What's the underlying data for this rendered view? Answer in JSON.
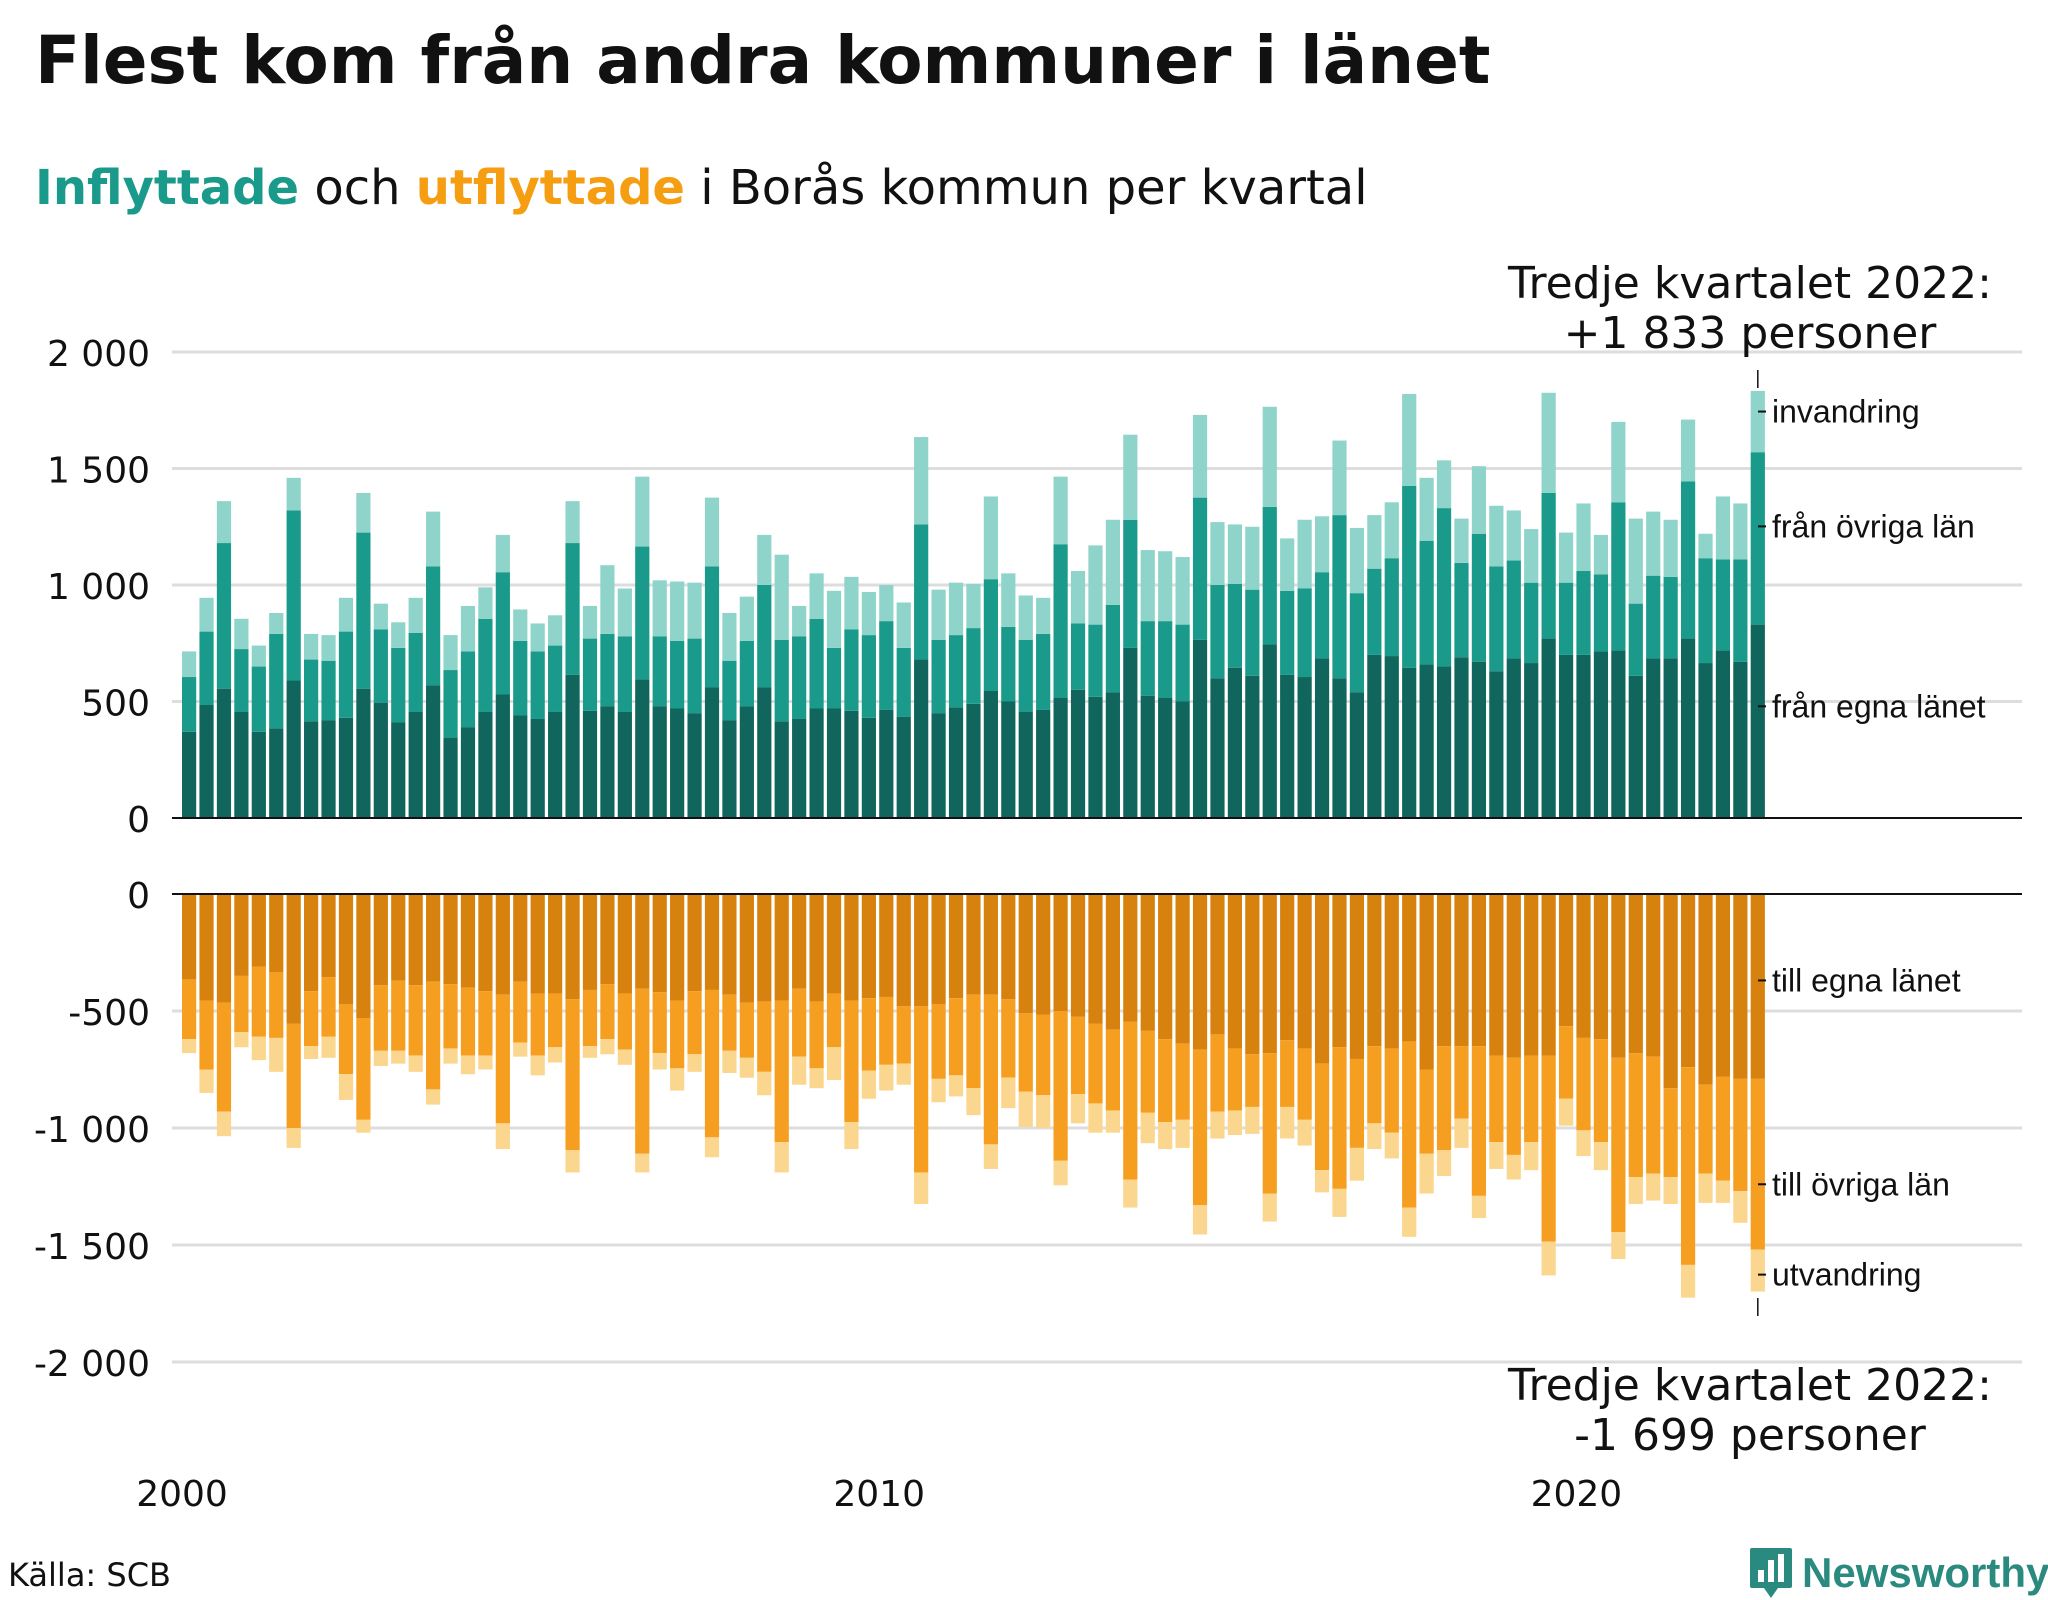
{
  "title": "Flest kom från andra kommuner i länet",
  "subtitle": {
    "in_word": "Inflyttade",
    "mid": " och ",
    "out_word": "utflyttade",
    "rest": " i Borås kommun per kvartal"
  },
  "colors": {
    "in_own": "#10665d",
    "in_other": "#1a9a8a",
    "in_immigration": "#8fd4ca",
    "out_own": "#d7820f",
    "out_other": "#f59e1f",
    "out_emigration": "#fbd68e",
    "title_in": "#1a9a8a",
    "title_out": "#f59e12",
    "brand": "#2a8a80"
  },
  "annotations": {
    "top_line1": "Tredje kvartalet 2022:",
    "top_line2": "+1 833 personer",
    "bottom_line1": "Tredje kvartalet 2022:",
    "bottom_line2": "-1 699 personer"
  },
  "source": "Källa: SCB",
  "brand": {
    "name": "Newsworthy",
    "icon": "bar-chart-icon"
  },
  "chart_data": {
    "type": "bar",
    "x_start": "2000 Q1",
    "x_ticks": [
      "2000",
      "2010",
      "2020"
    ],
    "categories": [
      "2000 Q1",
      "2000 Q2",
      "2000 Q3",
      "2000 Q4",
      "2001 Q1",
      "2001 Q2",
      "2001 Q3",
      "2001 Q4",
      "2002 Q1",
      "2002 Q2",
      "2002 Q3",
      "2002 Q4",
      "2003 Q1",
      "2003 Q2",
      "2003 Q3",
      "2003 Q4",
      "2004 Q1",
      "2004 Q2",
      "2004 Q3",
      "2004 Q4",
      "2005 Q1",
      "2005 Q2",
      "2005 Q3",
      "2005 Q4",
      "2006 Q1",
      "2006 Q2",
      "2006 Q3",
      "2006 Q4",
      "2007 Q1",
      "2007 Q2",
      "2007 Q3",
      "2007 Q4",
      "2008 Q1",
      "2008 Q2",
      "2008 Q3",
      "2008 Q4",
      "2009 Q1",
      "2009 Q2",
      "2009 Q3",
      "2009 Q4",
      "2010 Q1",
      "2010 Q2",
      "2010 Q3",
      "2010 Q4",
      "2011 Q1",
      "2011 Q2",
      "2011 Q3",
      "2011 Q4",
      "2012 Q1",
      "2012 Q2",
      "2012 Q3",
      "2012 Q4",
      "2013 Q1",
      "2013 Q2",
      "2013 Q3",
      "2013 Q4",
      "2014 Q1",
      "2014 Q2",
      "2014 Q3",
      "2014 Q4",
      "2015 Q1",
      "2015 Q2",
      "2015 Q3",
      "2015 Q4",
      "2016 Q1",
      "2016 Q2",
      "2016 Q3",
      "2016 Q4",
      "2017 Q1",
      "2017 Q2",
      "2017 Q3",
      "2017 Q4",
      "2018 Q1",
      "2018 Q2",
      "2018 Q3",
      "2018 Q4",
      "2019 Q1",
      "2019 Q2",
      "2019 Q3",
      "2019 Q4",
      "2020 Q1",
      "2020 Q2",
      "2020 Q3",
      "2020 Q4",
      "2021 Q1",
      "2021 Q2",
      "2021 Q3",
      "2021 Q4",
      "2022 Q1",
      "2022 Q2",
      "2022 Q3"
    ],
    "panels": [
      {
        "name": "inflyttade",
        "ylim": [
          0,
          2000
        ],
        "y_ticks": [
          0,
          500,
          1000,
          1500,
          2000
        ],
        "y_tick_labels": [
          "0",
          "500",
          "1 000",
          "1 500",
          "2 000"
        ],
        "series": [
          {
            "name": "från egna länet",
            "values": [
              370,
              485,
              555,
              455,
              370,
              385,
              590,
              415,
              420,
              430,
              555,
              495,
              410,
              455,
              570,
              345,
              390,
              455,
              530,
              440,
              425,
              455,
              615,
              460,
              480,
              455,
              595,
              480,
              470,
              450,
              560,
              420,
              480,
              560,
              415,
              425,
              470,
              470,
              460,
              430,
              465,
              435,
              680,
              450,
              475,
              490,
              545,
              500,
              455,
              465,
              515,
              550,
              520,
              540,
              730,
              525,
              515,
              500,
              765,
              600,
              645,
              610,
              745,
              615,
              605,
              685,
              600,
              540,
              700,
              695,
              645,
              660,
              650,
              690,
              670,
              630,
              685,
              665,
              770,
              700,
              700,
              715,
              720,
              610,
              685,
              685,
              770,
              665,
              720,
              670,
              830
            ]
          },
          {
            "name": "från övriga län",
            "values": [
              235,
              315,
              625,
              270,
              280,
              405,
              730,
              265,
              255,
              370,
              670,
              315,
              320,
              340,
              510,
              290,
              325,
              400,
              525,
              320,
              290,
              285,
              565,
              310,
              310,
              325,
              570,
              300,
              290,
              320,
              520,
              255,
              280,
              440,
              350,
              355,
              385,
              260,
              350,
              355,
              380,
              295,
              580,
              315,
              310,
              325,
              480,
              320,
              310,
              325,
              660,
              285,
              310,
              375,
              550,
              320,
              330,
              330,
              610,
              400,
              360,
              370,
              590,
              360,
              380,
              370,
              700,
              425,
              370,
              420,
              780,
              530,
              680,
              405,
              550,
              450,
              420,
              345,
              625,
              310,
              360,
              330,
              635,
              310,
              355,
              350,
              675,
              450,
              390,
              440,
              740
            ]
          },
          {
            "name": "invandring",
            "values": [
              110,
              145,
              180,
              130,
              90,
              90,
              140,
              110,
              110,
              145,
              170,
              110,
              110,
              150,
              235,
              150,
              195,
              135,
              160,
              135,
              120,
              130,
              180,
              140,
              295,
              205,
              300,
              240,
              255,
              240,
              295,
              205,
              190,
              215,
              365,
              130,
              195,
              245,
              225,
              185,
              155,
              195,
              375,
              215,
              225,
              190,
              355,
              230,
              190,
              155,
              290,
              225,
              340,
              365,
              365,
              305,
              300,
              290,
              355,
              270,
              255,
              270,
              430,
              225,
              295,
              240,
              320,
              280,
              230,
              240,
              395,
              270,
              205,
              190,
              290,
              260,
              215,
              230,
              430,
              215,
              290,
              170,
              345,
              365,
              275,
              245,
              265,
              105,
              270,
              240,
              263
            ]
          }
        ]
      },
      {
        "name": "utflyttade",
        "ylim": [
          -2000,
          0
        ],
        "y_ticks": [
          0,
          -500,
          -1000,
          -1500,
          -2000
        ],
        "y_tick_labels": [
          "0",
          "-500",
          "-1 000",
          "-1 500",
          "-2 000"
        ],
        "series": [
          {
            "name": "till egna länet",
            "values": [
              -365,
              -455,
              -465,
              -350,
              -310,
              -335,
              -555,
              -415,
              -355,
              -470,
              -530,
              -390,
              -370,
              -390,
              -375,
              -385,
              -400,
              -415,
              -430,
              -375,
              -425,
              -425,
              -450,
              -410,
              -385,
              -425,
              -405,
              -420,
              -455,
              -415,
              -410,
              -430,
              -465,
              -460,
              -455,
              -405,
              -460,
              -425,
              -455,
              -445,
              -440,
              -480,
              -480,
              -470,
              -445,
              -430,
              -430,
              -450,
              -510,
              -515,
              -500,
              -525,
              -555,
              -580,
              -545,
              -585,
              -620,
              -640,
              -665,
              -600,
              -660,
              -685,
              -680,
              -625,
              -660,
              -725,
              -655,
              -705,
              -650,
              -660,
              -630,
              -750,
              -650,
              -650,
              -650,
              -690,
              -700,
              -690,
              -690,
              -565,
              -615,
              -620,
              -700,
              -680,
              -695,
              -830,
              -740,
              -815,
              -780,
              -790,
              -790
            ]
          },
          {
            "name": "till övriga län",
            "values": [
              -255,
              -295,
              -465,
              -240,
              -300,
              -280,
              -445,
              -235,
              -255,
              -300,
              -435,
              -280,
              -300,
              -300,
              -460,
              -275,
              -290,
              -275,
              -550,
              -260,
              -265,
              -230,
              -645,
              -240,
              -235,
              -240,
              -705,
              -260,
              -290,
              -270,
              -630,
              -240,
              -235,
              -300,
              -605,
              -290,
              -285,
              -230,
              -520,
              -310,
              -290,
              -245,
              -710,
              -320,
              -330,
              -400,
              -640,
              -335,
              -335,
              -345,
              -640,
              -330,
              -340,
              -345,
              -675,
              -350,
              -355,
              -325,
              -665,
              -330,
              -265,
              -225,
              -600,
              -285,
              -305,
              -455,
              -605,
              -380,
              -330,
              -360,
              -710,
              -360,
              -445,
              -310,
              -640,
              -370,
              -415,
              -370,
              -795,
              -310,
              -395,
              -440,
              -745,
              -530,
              -500,
              -380,
              -845,
              -380,
              -445,
              -480,
              -730
            ]
          },
          {
            "name": "utvandring",
            "values": [
              -60,
              -100,
              -105,
              -65,
              -100,
              -145,
              -85,
              -55,
              -90,
              -110,
              -55,
              -65,
              -55,
              -70,
              -65,
              -65,
              -80,
              -60,
              -110,
              -60,
              -85,
              -65,
              -95,
              -50,
              -65,
              -65,
              -80,
              -70,
              -95,
              -75,
              -85,
              -95,
              -85,
              -100,
              -130,
              -120,
              -85,
              -140,
              -115,
              -120,
              -110,
              -90,
              -135,
              -100,
              -90,
              -115,
              -105,
              -130,
              -150,
              -140,
              -105,
              -125,
              -125,
              -95,
              -120,
              -130,
              -115,
              -120,
              -125,
              -115,
              -105,
              -115,
              -120,
              -135,
              -110,
              -95,
              -120,
              -140,
              -110,
              -110,
              -125,
              -170,
              -110,
              -125,
              -95,
              -115,
              -105,
              -120,
              -145,
              -115,
              -110,
              -120,
              -115,
              -115,
              -115,
              -115,
              -140,
              -125,
              -95,
              -135,
              -179
            ]
          }
        ]
      }
    ],
    "series_labels": {
      "top": [
        "invandring",
        "från övriga län",
        "från egna länet"
      ],
      "bottom": [
        "till egna länet",
        "till övriga län",
        "utvandring"
      ]
    },
    "grid": true,
    "legend": "right"
  }
}
